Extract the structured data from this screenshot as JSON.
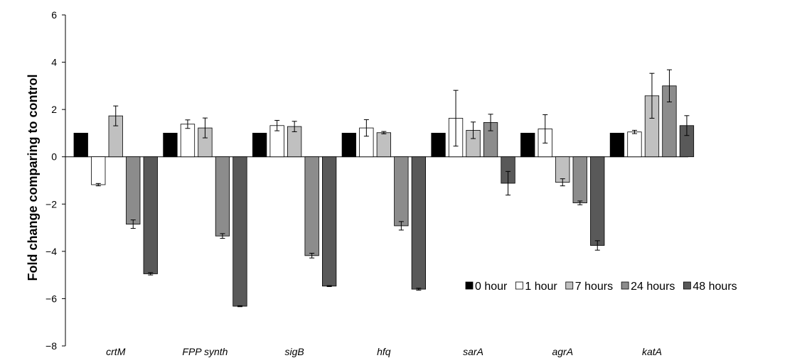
{
  "chart_data": {
    "type": "bar",
    "title": "",
    "xlabel": "",
    "ylabel": "Fold change comparing to control",
    "ylim": [
      -8,
      6
    ],
    "yticks": [
      6,
      4,
      2,
      0,
      -2,
      -4,
      -6,
      -8
    ],
    "ytick_labels": [
      "6",
      "4",
      "2",
      "0",
      "−2",
      "−4",
      "−6",
      "−8"
    ],
    "grid": false,
    "legend_position": "lower-right",
    "categories": [
      "crtM",
      "FPP synth",
      "sigB",
      "hfq",
      "sarA",
      "agrA",
      "katA"
    ],
    "series": [
      {
        "name": "0 hour",
        "color": "#000000",
        "values": [
          1.0,
          1.0,
          1.0,
          1.0,
          1.0,
          1.0,
          1.0
        ],
        "errors": [
          0,
          0,
          0,
          0,
          0,
          0,
          0
        ]
      },
      {
        "name": "1 hour",
        "color": "#ffffff",
        "values": [
          -1.18,
          1.38,
          1.32,
          1.22,
          1.63,
          1.18,
          1.05
        ],
        "errors": [
          0.05,
          0.18,
          0.22,
          0.35,
          1.18,
          0.6,
          0.07
        ]
      },
      {
        "name": "7 hours",
        "color": "#c0c0c0",
        "values": [
          1.73,
          1.22,
          1.28,
          1.02,
          1.12,
          -1.08,
          2.58
        ],
        "errors": [
          0.42,
          0.42,
          0.22,
          0.05,
          0.35,
          0.15,
          0.95
        ]
      },
      {
        "name": "24 hours",
        "color": "#8c8c8c",
        "values": [
          -2.85,
          -3.35,
          -4.18,
          -2.92,
          1.45,
          -1.95,
          3.0
        ],
        "errors": [
          0.18,
          0.1,
          0.1,
          0.18,
          0.35,
          0.08,
          0.68
        ]
      },
      {
        "name": "48 hours",
        "color": "#595959",
        "values": [
          -4.95,
          -6.32,
          -5.47,
          -5.6,
          -1.12,
          -3.75,
          1.32
        ],
        "errors": [
          0.05,
          0.02,
          0.02,
          0.04,
          0.5,
          0.2,
          0.42
        ]
      }
    ]
  }
}
